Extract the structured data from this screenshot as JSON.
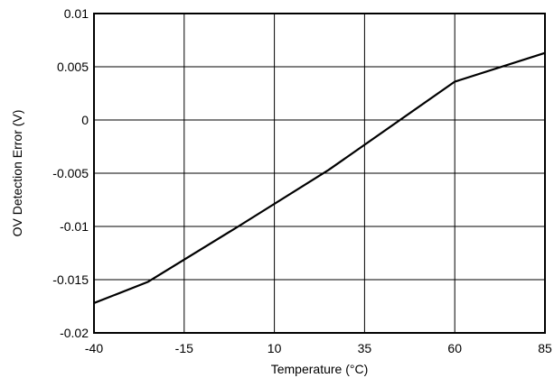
{
  "chart_data": {
    "type": "line",
    "xlabel": "Temperature (°C)",
    "ylabel": "OV Detection Error (V)",
    "xlim": [
      -40,
      85
    ],
    "ylim": [
      -0.02,
      0.01
    ],
    "x_ticks": [
      -40,
      -15,
      10,
      35,
      60,
      85
    ],
    "x_tick_labels": [
      "-40",
      "-15",
      "10",
      "35",
      "60",
      "85"
    ],
    "y_ticks": [
      0.01,
      0.005,
      0,
      -0.005,
      -0.01,
      -0.015,
      -0.02
    ],
    "y_tick_labels": [
      "0.01",
      "0.005",
      "0",
      "-0.005",
      "-0.01",
      "-0.015",
      "-0.02"
    ],
    "grid": true,
    "series": [
      {
        "color": "#000000",
        "x": [
          -40,
          -25,
          0,
          25,
          60,
          85
        ],
        "y": [
          -0.0172,
          -0.0152,
          -0.01,
          -0.0047,
          0.0036,
          0.0063
        ]
      }
    ]
  }
}
